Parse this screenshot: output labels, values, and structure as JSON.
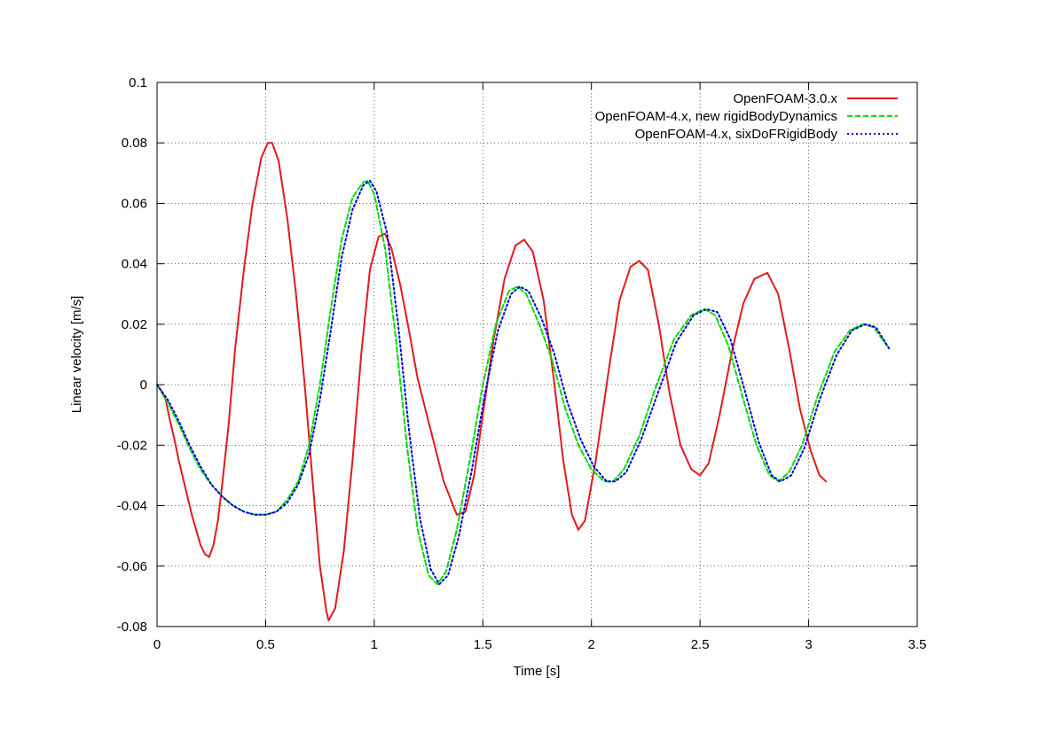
{
  "chart_data": {
    "type": "line",
    "title": "",
    "xlabel": "Time [s]",
    "ylabel": "Linear velocity [m/s]",
    "xlim": [
      0,
      3.5
    ],
    "ylim": [
      -0.08,
      0.1
    ],
    "xticks": [
      0,
      0.5,
      1,
      1.5,
      2,
      2.5,
      3,
      3.5
    ],
    "xtick_labels": [
      "0",
      "0.5",
      "1",
      "1.5",
      "2",
      "2.5",
      "3",
      "3.5"
    ],
    "yticks": [
      -0.08,
      -0.06,
      -0.04,
      -0.02,
      0,
      0.02,
      0.04,
      0.06,
      0.08,
      0.1
    ],
    "ytick_labels": [
      "-0.08",
      "-0.06",
      "-0.04",
      "-0.02",
      "0",
      "0.02",
      "0.04",
      "0.06",
      "0.08",
      "0.1"
    ],
    "grid": true,
    "legend_position": "top-right",
    "series": [
      {
        "name": "OpenFOAM-3.0.x",
        "color": "#e41a1c",
        "style": "solid",
        "points": [
          [
            0,
            0
          ],
          [
            0.02,
            -0.002
          ],
          [
            0.04,
            -0.005
          ],
          [
            0.06,
            -0.012
          ],
          [
            0.08,
            -0.018
          ],
          [
            0.1,
            -0.025
          ],
          [
            0.12,
            -0.031
          ],
          [
            0.14,
            -0.037
          ],
          [
            0.16,
            -0.043
          ],
          [
            0.18,
            -0.048
          ],
          [
            0.2,
            -0.053
          ],
          [
            0.22,
            -0.056
          ],
          [
            0.24,
            -0.057
          ],
          [
            0.26,
            -0.053
          ],
          [
            0.28,
            -0.045
          ],
          [
            0.3,
            -0.033
          ],
          [
            0.33,
            -0.013
          ],
          [
            0.36,
            0.012
          ],
          [
            0.4,
            0.038
          ],
          [
            0.44,
            0.06
          ],
          [
            0.48,
            0.075
          ],
          [
            0.51,
            0.08
          ],
          [
            0.53,
            0.08
          ],
          [
            0.56,
            0.074
          ],
          [
            0.6,
            0.055
          ],
          [
            0.64,
            0.03
          ],
          [
            0.68,
            0.0
          ],
          [
            0.72,
            -0.035
          ],
          [
            0.75,
            -0.06
          ],
          [
            0.78,
            -0.075
          ],
          [
            0.79,
            -0.078
          ],
          [
            0.82,
            -0.074
          ],
          [
            0.86,
            -0.055
          ],
          [
            0.9,
            -0.025
          ],
          [
            0.94,
            0.01
          ],
          [
            0.98,
            0.038
          ],
          [
            1.02,
            0.049
          ],
          [
            1.05,
            0.05
          ],
          [
            1.08,
            0.045
          ],
          [
            1.12,
            0.033
          ],
          [
            1.16,
            0.018
          ],
          [
            1.2,
            0.002
          ],
          [
            1.26,
            -0.015
          ],
          [
            1.32,
            -0.032
          ],
          [
            1.38,
            -0.043
          ],
          [
            1.42,
            -0.042
          ],
          [
            1.46,
            -0.03
          ],
          [
            1.5,
            -0.01
          ],
          [
            1.55,
            0.015
          ],
          [
            1.6,
            0.035
          ],
          [
            1.65,
            0.046
          ],
          [
            1.69,
            0.048
          ],
          [
            1.73,
            0.044
          ],
          [
            1.78,
            0.028
          ],
          [
            1.83,
            0.0
          ],
          [
            1.87,
            -0.025
          ],
          [
            1.91,
            -0.043
          ],
          [
            1.94,
            -0.048
          ],
          [
            1.97,
            -0.045
          ],
          [
            2.02,
            -0.025
          ],
          [
            2.08,
            0.005
          ],
          [
            2.13,
            0.028
          ],
          [
            2.18,
            0.039
          ],
          [
            2.22,
            0.041
          ],
          [
            2.26,
            0.038
          ],
          [
            2.31,
            0.02
          ],
          [
            2.36,
            -0.003
          ],
          [
            2.41,
            -0.02
          ],
          [
            2.46,
            -0.028
          ],
          [
            2.5,
            -0.03
          ],
          [
            2.54,
            -0.026
          ],
          [
            2.59,
            -0.01
          ],
          [
            2.65,
            0.012
          ],
          [
            2.7,
            0.027
          ],
          [
            2.75,
            0.035
          ],
          [
            2.81,
            0.037
          ],
          [
            2.86,
            0.03
          ],
          [
            2.91,
            0.012
          ],
          [
            2.96,
            -0.008
          ],
          [
            3.01,
            -0.022
          ],
          [
            3.05,
            -0.03
          ],
          [
            3.08,
            -0.032
          ]
        ]
      },
      {
        "name": "OpenFOAM-4.x, new rigidBodyDynamics",
        "color": "#00dd00",
        "style": "dashed",
        "points": [
          [
            0,
            0
          ],
          [
            0.05,
            -0.006
          ],
          [
            0.1,
            -0.013
          ],
          [
            0.15,
            -0.021
          ],
          [
            0.2,
            -0.028
          ],
          [
            0.25,
            -0.033
          ],
          [
            0.3,
            -0.037
          ],
          [
            0.35,
            -0.04
          ],
          [
            0.4,
            -0.042
          ],
          [
            0.45,
            -0.043
          ],
          [
            0.5,
            -0.043
          ],
          [
            0.55,
            -0.042
          ],
          [
            0.6,
            -0.038
          ],
          [
            0.65,
            -0.032
          ],
          [
            0.7,
            -0.02
          ],
          [
            0.75,
            0.0
          ],
          [
            0.8,
            0.025
          ],
          [
            0.85,
            0.048
          ],
          [
            0.9,
            0.062
          ],
          [
            0.95,
            0.067
          ],
          [
            0.97,
            0.0675
          ],
          [
            1.0,
            0.063
          ],
          [
            1.05,
            0.045
          ],
          [
            1.1,
            0.015
          ],
          [
            1.15,
            -0.02
          ],
          [
            1.2,
            -0.048
          ],
          [
            1.25,
            -0.063
          ],
          [
            1.29,
            -0.066
          ],
          [
            1.33,
            -0.062
          ],
          [
            1.38,
            -0.048
          ],
          [
            1.44,
            -0.025
          ],
          [
            1.5,
            0.0
          ],
          [
            1.56,
            0.02
          ],
          [
            1.62,
            0.031
          ],
          [
            1.66,
            0.0325
          ],
          [
            1.7,
            0.03
          ],
          [
            1.76,
            0.02
          ],
          [
            1.82,
            0.008
          ],
          [
            1.88,
            -0.008
          ],
          [
            1.94,
            -0.02
          ],
          [
            2.0,
            -0.028
          ],
          [
            2.06,
            -0.032
          ],
          [
            2.1,
            -0.032
          ],
          [
            2.15,
            -0.028
          ],
          [
            2.22,
            -0.017
          ],
          [
            2.3,
            0.0
          ],
          [
            2.38,
            0.015
          ],
          [
            2.46,
            0.023
          ],
          [
            2.52,
            0.025
          ],
          [
            2.57,
            0.023
          ],
          [
            2.63,
            0.013
          ],
          [
            2.7,
            -0.005
          ],
          [
            2.76,
            -0.02
          ],
          [
            2.82,
            -0.03
          ],
          [
            2.86,
            -0.032
          ],
          [
            2.91,
            -0.029
          ],
          [
            2.97,
            -0.02
          ],
          [
            3.04,
            -0.004
          ],
          [
            3.12,
            0.011
          ],
          [
            3.19,
            0.018
          ],
          [
            3.25,
            0.02
          ],
          [
            3.3,
            0.019
          ],
          [
            3.36,
            0.013
          ]
        ]
      },
      {
        "name": "OpenFOAM-4.x, sixDoFRigidBody",
        "color": "#0000dd",
        "style": "dotted",
        "points": [
          [
            0,
            0
          ],
          [
            0.05,
            -0.005
          ],
          [
            0.1,
            -0.012
          ],
          [
            0.15,
            -0.02
          ],
          [
            0.2,
            -0.027
          ],
          [
            0.25,
            -0.033
          ],
          [
            0.3,
            -0.037
          ],
          [
            0.35,
            -0.04
          ],
          [
            0.4,
            -0.042
          ],
          [
            0.45,
            -0.043
          ],
          [
            0.5,
            -0.043
          ],
          [
            0.55,
            -0.042
          ],
          [
            0.6,
            -0.039
          ],
          [
            0.65,
            -0.033
          ],
          [
            0.7,
            -0.023
          ],
          [
            0.75,
            -0.005
          ],
          [
            0.8,
            0.018
          ],
          [
            0.85,
            0.042
          ],
          [
            0.9,
            0.058
          ],
          [
            0.95,
            0.066
          ],
          [
            0.98,
            0.0675
          ],
          [
            1.01,
            0.064
          ],
          [
            1.06,
            0.05
          ],
          [
            1.11,
            0.02
          ],
          [
            1.16,
            -0.015
          ],
          [
            1.21,
            -0.044
          ],
          [
            1.26,
            -0.061
          ],
          [
            1.3,
            -0.066
          ],
          [
            1.34,
            -0.063
          ],
          [
            1.39,
            -0.05
          ],
          [
            1.45,
            -0.028
          ],
          [
            1.51,
            -0.003
          ],
          [
            1.57,
            0.018
          ],
          [
            1.63,
            0.03
          ],
          [
            1.67,
            0.0325
          ],
          [
            1.71,
            0.031
          ],
          [
            1.77,
            0.022
          ],
          [
            1.83,
            0.01
          ],
          [
            1.89,
            -0.006
          ],
          [
            1.95,
            -0.018
          ],
          [
            2.01,
            -0.027
          ],
          [
            2.07,
            -0.032
          ],
          [
            2.11,
            -0.032
          ],
          [
            2.16,
            -0.029
          ],
          [
            2.23,
            -0.018
          ],
          [
            2.31,
            -0.002
          ],
          [
            2.39,
            0.014
          ],
          [
            2.47,
            0.023
          ],
          [
            2.53,
            0.025
          ],
          [
            2.58,
            0.024
          ],
          [
            2.64,
            0.015
          ],
          [
            2.71,
            -0.003
          ],
          [
            2.77,
            -0.019
          ],
          [
            2.83,
            -0.03
          ],
          [
            2.87,
            -0.032
          ],
          [
            2.92,
            -0.03
          ],
          [
            2.98,
            -0.021
          ],
          [
            3.05,
            -0.005
          ],
          [
            3.13,
            0.01
          ],
          [
            3.2,
            0.018
          ],
          [
            3.26,
            0.02
          ],
          [
            3.31,
            0.019
          ],
          [
            3.37,
            0.012
          ]
        ]
      }
    ]
  }
}
